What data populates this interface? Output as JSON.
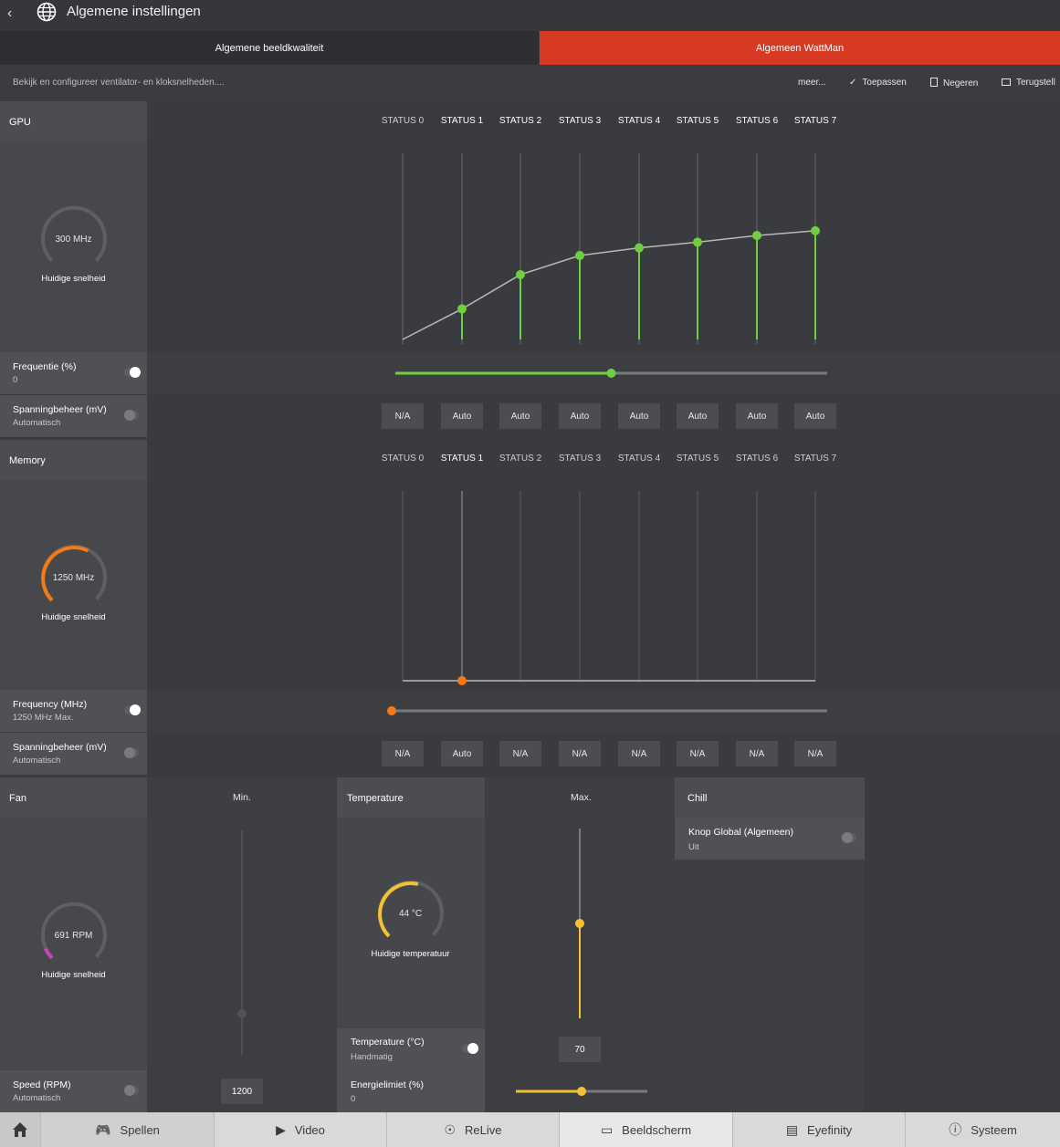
{
  "header": {
    "title": "Algemene instellingen",
    "back_icon": "chevron-left-icon",
    "globe_icon": "globe-icon"
  },
  "tabs": [
    {
      "label": "Algemene beeldkwaliteit",
      "active": false
    },
    {
      "label": "Algemeen WattMan",
      "active": true
    }
  ],
  "actionbar": {
    "description": "Bekijk en configureer ventilator- en kloksnelheden....",
    "more": "meer...",
    "apply": "Toepassen",
    "discard": "Negeren",
    "reset": "Terugstell"
  },
  "status_labels": [
    "STATUS 0",
    "STATUS 1",
    "STATUS 2",
    "STATUS 3",
    "STATUS 4",
    "STATUS 5",
    "STATUS 6",
    "STATUS 7"
  ],
  "gpu": {
    "heading": "GPU",
    "gauge_value": "300 MHz",
    "gauge_caption": "Huidige snelheid",
    "gauge_fraction": 0.0,
    "frequency_label": "Frequentie (%)",
    "frequency_value": "0",
    "frequency_slider": 0.5,
    "voltage_label": "Spanningbeheer (mV)",
    "voltage_value": "Automatisch",
    "voltages": [
      "N/A",
      "Auto",
      "Auto",
      "Auto",
      "Auto",
      "Auto",
      "Auto",
      "Auto"
    ],
    "curve_levels": [
      0.0,
      0.16,
      0.34,
      0.44,
      0.48,
      0.51,
      0.545,
      0.57
    ],
    "accent": "#6fcf3e"
  },
  "memory": {
    "heading": "Memory",
    "gauge_value": "1250 MHz",
    "gauge_caption": "Huidige snelheid",
    "gauge_fraction": 0.6,
    "frequency_label": "Frequency (MHz)",
    "frequency_value": "1250 MHz Max.",
    "frequency_slider": 0.0,
    "voltage_label": "Spanningbeheer (mV)",
    "voltage_value": "Automatisch",
    "voltages": [
      "N/A",
      "Auto",
      "N/A",
      "N/A",
      "N/A",
      "N/A",
      "N/A",
      "N/A"
    ],
    "active_state": 1,
    "accent": "#f57a12"
  },
  "fan": {
    "heading": "Fan",
    "min_label": "Min.",
    "gauge_value": "691 RPM",
    "gauge_caption": "Huidige snelheid",
    "gauge_fraction": 0.08,
    "speed_label": "Speed (RPM)",
    "speed_value": "Automatisch",
    "min_value": "1200",
    "accent": "#c844b8"
  },
  "temperature": {
    "heading": "Temperature",
    "max_label": "Max.",
    "gauge_value": "44 °C",
    "gauge_caption": "Huidige temperatuur",
    "gauge_fraction": 0.55,
    "temp_label": "Temperature (°C)",
    "temp_value": "Handmatig",
    "max_value": "70",
    "max_slider": 0.5,
    "power_label": "Energielimiet (%)",
    "power_value": "0",
    "power_slider": 0.5,
    "accent": "#f5c133"
  },
  "chill": {
    "heading": "Chill",
    "toggle_label": "Knop Global (Algemeen)",
    "toggle_value": "Uit"
  },
  "nav": [
    {
      "label": "Spellen",
      "icon": "gamepad-icon"
    },
    {
      "label": "Video",
      "icon": "play-icon"
    },
    {
      "label": "ReLive",
      "icon": "relive-icon"
    },
    {
      "label": "Beeldscherm",
      "icon": "monitor-icon"
    },
    {
      "label": "Eyefinity",
      "icon": "eyefinity-icon"
    },
    {
      "label": "Systeem",
      "icon": "info-icon"
    }
  ]
}
